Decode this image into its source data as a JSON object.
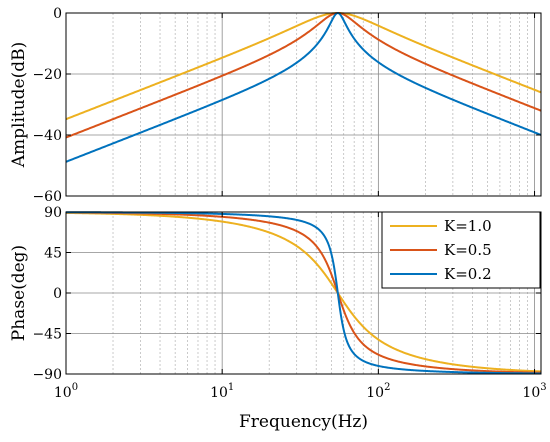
{
  "chart_data": [
    {
      "type": "line",
      "panel": "amplitude",
      "title": "",
      "xlabel": "",
      "ylabel": "Amplitude(dB)",
      "xscale": "log",
      "xlim": [
        1,
        1100
      ],
      "ylim": [
        -60,
        0
      ],
      "yticks": [
        0,
        -20,
        -40,
        -60
      ],
      "yticklabels": [
        "0",
        "−20",
        "−40",
        "−60"
      ],
      "grid": true,
      "center_frequency": 55,
      "series": [
        {
          "name": "K=1.0",
          "K": 1.0,
          "color": "#EDB120"
        },
        {
          "name": "K=0.5",
          "K": 0.5,
          "color": "#D95319"
        },
        {
          "name": "K=0.2",
          "K": 0.2,
          "color": "#0072BD"
        }
      ]
    },
    {
      "type": "line",
      "panel": "phase",
      "title": "",
      "xlabel": "Frequency(Hz)",
      "ylabel": "Phase(deg)",
      "xscale": "log",
      "xlim": [
        1,
        1100
      ],
      "ylim": [
        -90,
        90
      ],
      "yticks": [
        90,
        45,
        0,
        -45,
        -90
      ],
      "yticklabels": [
        "90",
        "45",
        "0",
        "−45",
        "−90"
      ],
      "xticks": [
        1,
        10,
        100,
        1000
      ],
      "xticklabels": [
        {
          "base": "10",
          "exp": "0"
        },
        {
          "base": "10",
          "exp": "1"
        },
        {
          "base": "10",
          "exp": "2"
        },
        {
          "base": "10",
          "exp": "3"
        }
      ],
      "grid": true,
      "legend_position": "top-right",
      "center_frequency": 55,
      "series": [
        {
          "name": "K=1.0",
          "K": 1.0,
          "color": "#EDB120"
        },
        {
          "name": "K=0.5",
          "K": 0.5,
          "color": "#D95319"
        },
        {
          "name": "K=0.2",
          "K": 0.2,
          "color": "#0072BD"
        }
      ]
    }
  ]
}
